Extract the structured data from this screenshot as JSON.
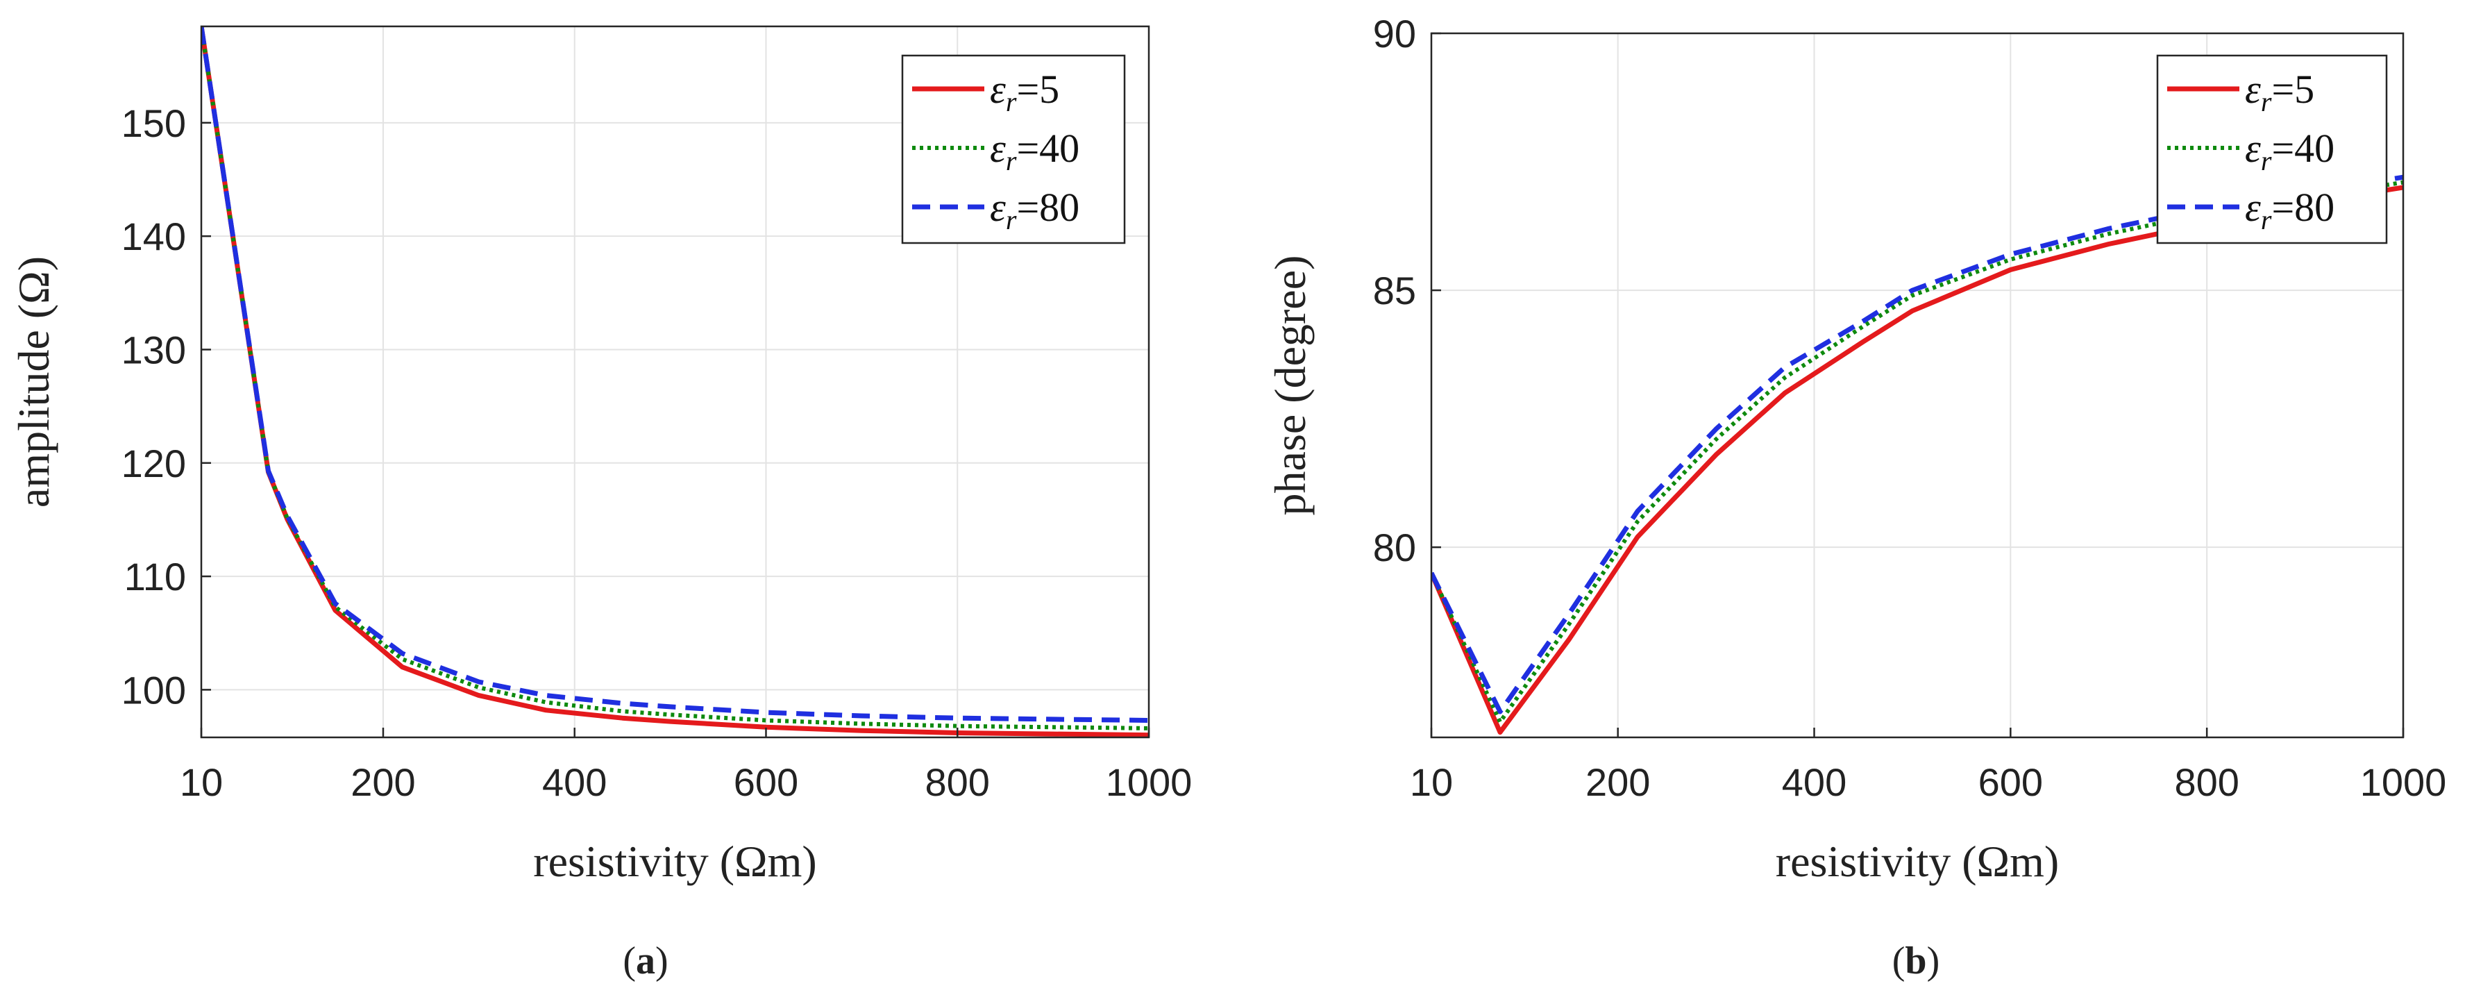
{
  "colors": {
    "eps5": "#e41a1c",
    "eps40": "#0e8a0e",
    "eps80": "#1f2fe0",
    "grid": "#e3e3e3",
    "axis": "#262626"
  },
  "chart_data": [
    {
      "type": "line",
      "caption": "a",
      "xlabel": "resistivity (Ωm)",
      "ylabel": "amplitude (Ω)",
      "xlim": [
        10,
        1000
      ],
      "ylim": [
        95.8,
        158.5
      ],
      "xticks": [
        10,
        200,
        400,
        600,
        800,
        1000
      ],
      "yticks": [
        100,
        110,
        120,
        130,
        140,
        150
      ],
      "grid": true,
      "legend_position": "top-right",
      "x": [
        10,
        80,
        100,
        150,
        220,
        300,
        370,
        450,
        500,
        600,
        700,
        800,
        900,
        1000
      ],
      "series": [
        {
          "name": "ε",
          "sub": "r",
          "suffix": "=5",
          "key": "eps5",
          "style": "solid",
          "values": [
            158.5,
            119.2,
            115.0,
            107.0,
            102.0,
            99.5,
            98.2,
            97.5,
            97.2,
            96.7,
            96.4,
            96.2,
            96.1,
            96.0
          ]
        },
        {
          "name": "ε",
          "sub": "r",
          "suffix": "=40",
          "key": "eps40",
          "style": "dotted",
          "values": [
            158.5,
            119.2,
            115.1,
            107.3,
            102.7,
            100.2,
            98.9,
            98.1,
            97.8,
            97.3,
            97.0,
            96.8,
            96.7,
            96.6
          ]
        },
        {
          "name": "ε",
          "sub": "r",
          "suffix": "=80",
          "key": "eps80",
          "style": "dashed",
          "values": [
            158.5,
            119.3,
            115.3,
            107.6,
            103.2,
            100.7,
            99.5,
            98.8,
            98.5,
            98.0,
            97.7,
            97.5,
            97.4,
            97.3
          ]
        }
      ]
    },
    {
      "type": "line",
      "caption": "b",
      "xlabel": "resistivity (Ωm)",
      "ylabel": "phase (degree)",
      "xlim": [
        10,
        1000
      ],
      "ylim": [
        76.3,
        90
      ],
      "xticks": [
        10,
        200,
        400,
        600,
        800,
        1000
      ],
      "yticks": [
        80,
        85,
        90
      ],
      "grid": true,
      "legend_position": "top-right",
      "x": [
        10,
        80,
        150,
        220,
        300,
        370,
        450,
        500,
        600,
        700,
        800,
        900,
        1000
      ],
      "series": [
        {
          "name": "ε",
          "sub": "r",
          "suffix": "=5",
          "key": "eps5",
          "style": "solid",
          "values": [
            79.5,
            76.4,
            78.2,
            80.2,
            81.8,
            83.0,
            84.0,
            84.6,
            85.4,
            85.9,
            86.3,
            86.7,
            87.0
          ]
        },
        {
          "name": "ε",
          "sub": "r",
          "suffix": "=40",
          "key": "eps40",
          "style": "dotted",
          "values": [
            79.5,
            76.6,
            78.5,
            80.5,
            82.1,
            83.3,
            84.3,
            84.9,
            85.6,
            86.1,
            86.5,
            86.8,
            87.1
          ]
        },
        {
          "name": "ε",
          "sub": "r",
          "suffix": "=80",
          "key": "eps80",
          "style": "dashed",
          "values": [
            79.5,
            76.8,
            78.7,
            80.7,
            82.3,
            83.5,
            84.4,
            85.0,
            85.7,
            86.2,
            86.6,
            86.9,
            87.2
          ]
        }
      ]
    }
  ]
}
